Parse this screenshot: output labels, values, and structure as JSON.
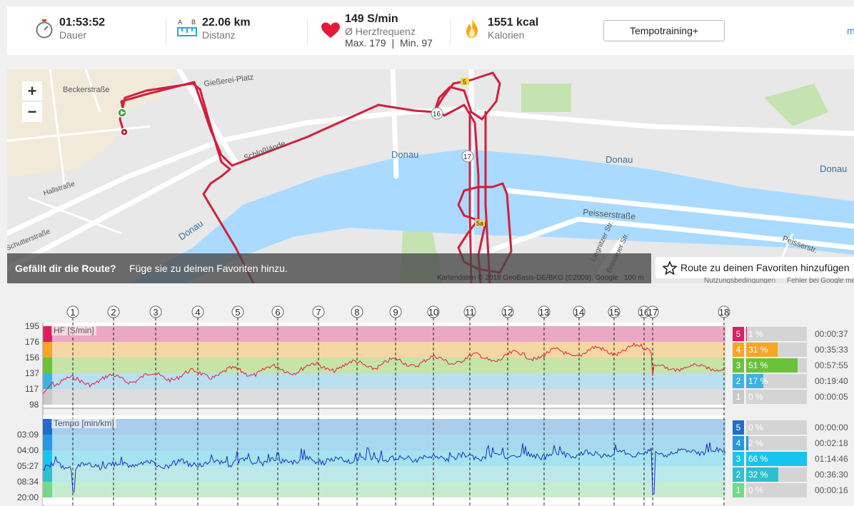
{
  "stats": {
    "duration": {
      "value": "01:53:52",
      "label": "Dauer"
    },
    "distance": {
      "value": "22.06 km",
      "label": "Distanz",
      "ab_a": "A",
      "ab_b": "B"
    },
    "heart": {
      "value": "149 S/min",
      "label": "Ø Herzfrequenz",
      "max": "Max. 179",
      "sep": "|",
      "min": "Min. 97"
    },
    "calories": {
      "value": "1551 kcal",
      "label": "Kalorien"
    },
    "tempo_button": "Tempotraining+",
    "more_link": "m"
  },
  "map": {
    "zoom_in": "+",
    "zoom_out": "−",
    "labels": {
      "beckerstrasse": "Beckerstraße",
      "giesserei": "Gießerei-Platz",
      "donau1": "Donau",
      "donau2": "Donau",
      "donau3": "Donau",
      "donau4": "Donau",
      "hallstrasse": "Hallstraße",
      "schutterstrasse": "Schutterstraße",
      "peisserstrasse": "Peisserstraße",
      "schlosslaende": "Schloßlände",
      "liegnitzer": "Liegnitzer Str.",
      "breslauer": "Breslauer Str.",
      "peisser2": "Peisserstr.",
      "r16": "16",
      "r17": "17",
      "r5": "5",
      "r5a": "5a"
    },
    "fav_bold": "Gefällt dir die Route?",
    "fav_text": "Füge sie zu deinen Favoriten hinzu.",
    "fav_button": "Route zu deinen Favoriten hinzufügen",
    "attribution": "Kartendaten © 2018 GeoBasis-DE/BKG (©2009), Google",
    "scale": "100 m",
    "terms": "Nutzungsbedingungen",
    "report": "Fehler bei Google melden"
  },
  "colors": {
    "route": "#d0203f",
    "water": "#aadaff",
    "z5": "#dd1f62",
    "z4": "#f6a623",
    "z3": "#6cc13b",
    "z2": "#3fb1e5",
    "z1": "#c9c9c9",
    "p5": "#1e6fcb",
    "p4": "#2697e0",
    "p3": "#18c4ef",
    "p2": "#2ebfce",
    "p1": "#72d98a"
  },
  "laps": [
    "1",
    "2",
    "3",
    "4",
    "5",
    "6",
    "7",
    "8",
    "9",
    "10",
    "11",
    "12",
    "13",
    "14",
    "15",
    "16",
    "17",
    "18"
  ],
  "hr_chart": {
    "title": "HF [S/min]",
    "ticks": [
      "195",
      "176",
      "156",
      "137",
      "117",
      "98"
    ],
    "zones": [
      {
        "zone": "5",
        "pct": "1 %",
        "pct_value": 1,
        "time": "00:00:37"
      },
      {
        "zone": "4",
        "pct": "31 %",
        "pct_value": 31,
        "time": "00:35:33"
      },
      {
        "zone": "3",
        "pct": "51 %",
        "pct_value": 51,
        "time": "00:57:55"
      },
      {
        "zone": "2",
        "pct": "17 %",
        "pct_value": 17,
        "time": "00:19:40"
      },
      {
        "zone": "1",
        "pct": "0 %",
        "pct_value": 0,
        "time": "00:00:05"
      }
    ]
  },
  "pace_chart": {
    "title": "Tempo [min/km]",
    "ticks": [
      "03:09",
      "04:00",
      "05:27",
      "08:34",
      "20:00"
    ],
    "zones": [
      {
        "zone": "5",
        "pct": "0 %",
        "pct_value": 0,
        "time": "00:00:00"
      },
      {
        "zone": "4",
        "pct": "2 %",
        "pct_value": 2,
        "time": "00:02:18"
      },
      {
        "zone": "3",
        "pct": "66 %",
        "pct_value": 66,
        "time": "01:14:46"
      },
      {
        "zone": "2",
        "pct": "32 %",
        "pct_value": 32,
        "time": "00:36:30"
      },
      {
        "zone": "1",
        "pct": "0 %",
        "pct_value": 0,
        "time": "00:00:16"
      }
    ]
  }
}
